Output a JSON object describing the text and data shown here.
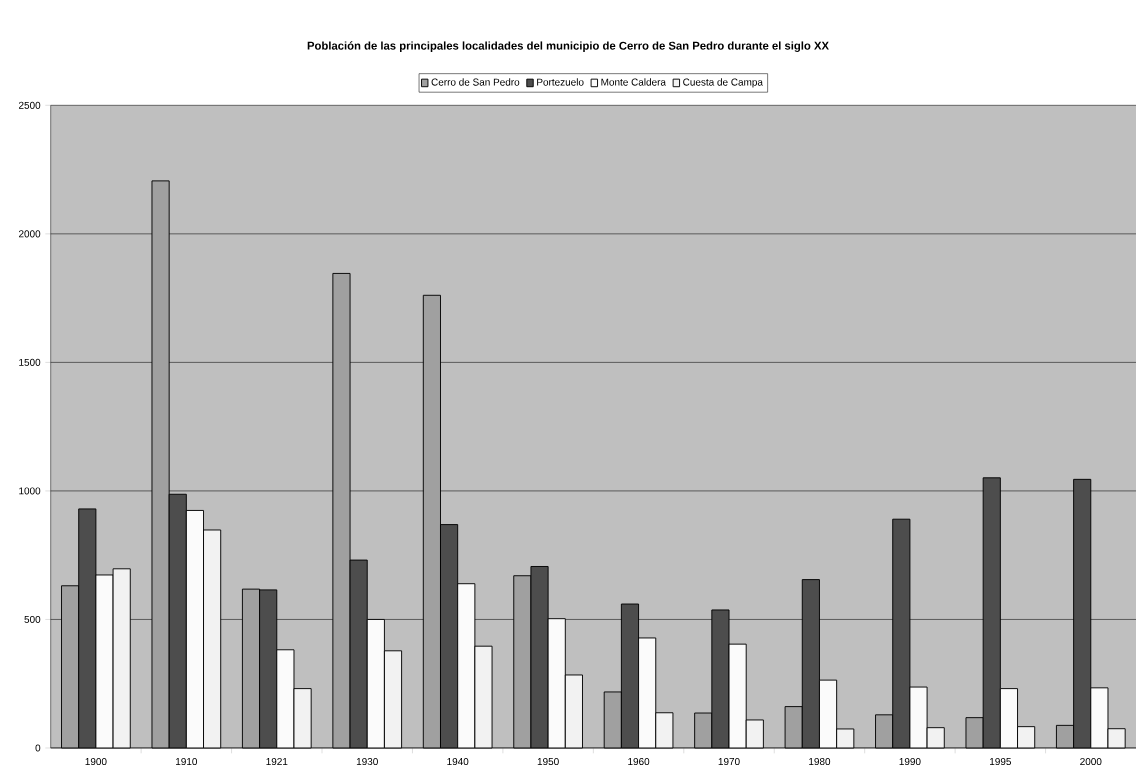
{
  "chart_data": {
    "type": "bar",
    "title": "**Población de las principales localidades del municipio de Cerro de San Pedro durante el siglo XX**",
    "categories": [
      "1900",
      "1910",
      "1921",
      "1930",
      "1940",
      "1950",
      "1960",
      "1970",
      "1980",
      "1990",
      "1995",
      "2000"
    ],
    "series": [
      {
        "name": "Cerro de San Pedro",
        "color": "#a0a0a0",
        "values": [
          631,
          2206,
          618,
          1846,
          1761,
          670,
          218,
          136,
          161,
          129,
          118,
          88
        ]
      },
      {
        "name": "Portezuelo",
        "color": "#4d4d4d",
        "values": [
          930,
          987,
          615,
          731,
          869,
          706,
          560,
          537,
          655,
          890,
          1051,
          1045
        ]
      },
      {
        "name": "Monte Caldera",
        "color": "#fbfbfb",
        "values": [
          673,
          924,
          382,
          500,
          639,
          503,
          428,
          404,
          264,
          237,
          231,
          234
        ]
      },
      {
        "name": "Cuesta de Campa",
        "color": "#f2f2f2",
        "values": [
          697,
          848,
          231,
          378,
          396,
          284,
          137,
          109,
          74,
          79,
          83,
          75
        ]
      }
    ],
    "ylim": [
      0,
      2500
    ],
    "yticks": [
      0,
      500,
      1000,
      1500,
      2000,
      2500
    ],
    "grid": "y",
    "legend": "top"
  }
}
